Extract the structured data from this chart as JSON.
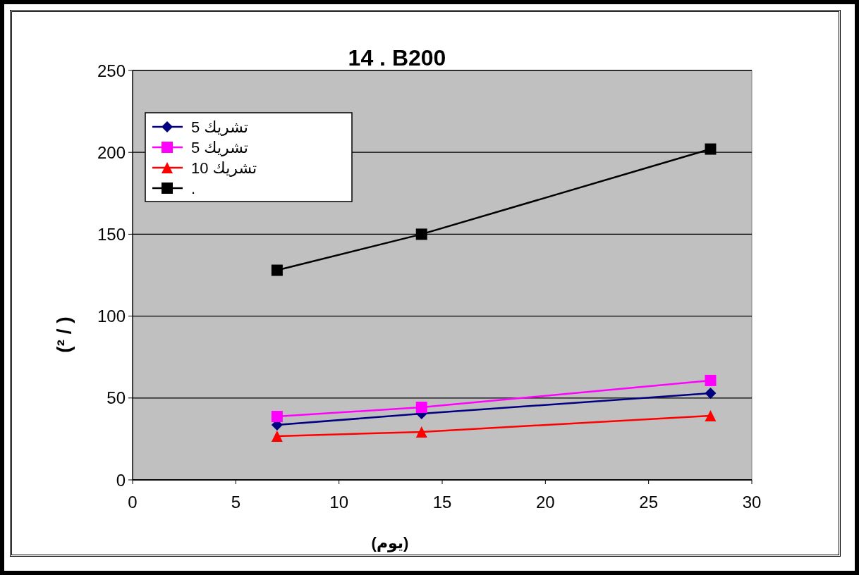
{
  "chart_data": {
    "type": "line",
    "title": "14 . B200",
    "xlabel": "(يوم)",
    "ylabel": "(² / )",
    "xlim": [
      0,
      30
    ],
    "xticks": [
      0,
      5,
      10,
      15,
      20,
      25,
      30
    ],
    "ylim": [
      0,
      250
    ],
    "yticks": [
      0,
      50,
      100,
      150,
      200,
      250
    ],
    "grid": "y",
    "legend": "top left",
    "x": [
      7,
      14,
      28
    ],
    "series": [
      {
        "name": "تشريك 5",
        "color": "#000080",
        "marker": "diamond",
        "values": [
          33.6,
          40.4,
          52.9
        ]
      },
      {
        "name": "تشريك 5",
        "color": "#ff00ff",
        "marker": "square",
        "values": [
          38.7,
          44.3,
          60.7
        ]
      },
      {
        "name": "تشريك 10",
        "color": "#ff0000",
        "marker": "triangle",
        "values": [
          26.7,
          29.3,
          39.2
        ]
      },
      {
        "name": ".",
        "color": "#000000",
        "marker": "square",
        "values": [
          128,
          150,
          202
        ]
      }
    ]
  }
}
